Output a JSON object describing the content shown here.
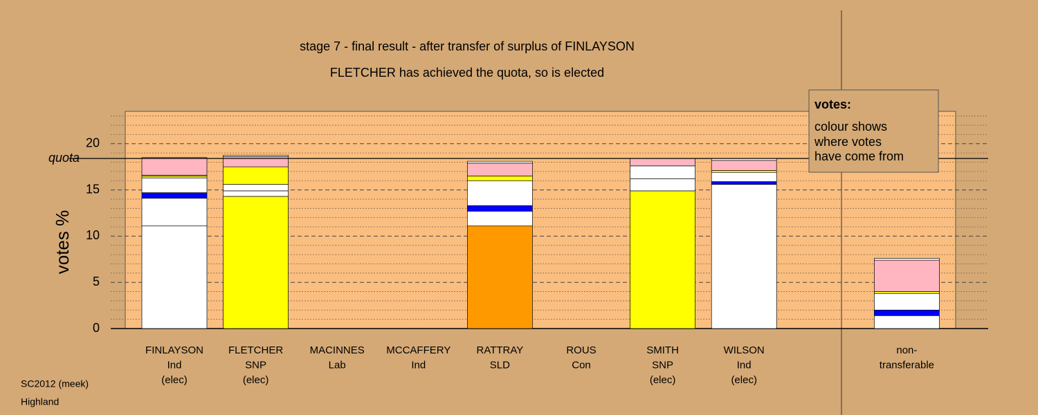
{
  "chart_data": {
    "type": "stacked-bar",
    "title": "stage 7 - final result - after transfer of surplus of FINLAYSON",
    "subtitle": "FLETCHER has achieved the quota, so is elected",
    "ylabel": "votes %",
    "ylim": [
      0,
      23.5
    ],
    "yticks": [
      0,
      5,
      10,
      15,
      20
    ],
    "yminor": [
      1,
      2,
      3,
      4,
      6,
      7,
      8,
      9,
      11,
      12,
      13,
      14,
      16,
      17,
      18,
      19,
      21,
      22,
      23
    ],
    "quota": {
      "label": "quota",
      "value": 18.4
    },
    "categories": [
      [
        "FINLAYSON",
        "Ind",
        "(elec)"
      ],
      [
        "FLETCHER",
        "SNP",
        "(elec)"
      ],
      [
        "MACINNES",
        "Lab"
      ],
      [
        "MCCAFFERY",
        "Ind"
      ],
      [
        "RATTRAY",
        "SLD"
      ],
      [
        "ROUS",
        "Con"
      ],
      [
        "SMITH",
        "SNP",
        "(elec)"
      ],
      [
        "WILSON",
        "Ind",
        "(elec)"
      ],
      [
        "non-",
        "transferable"
      ]
    ],
    "series": [
      {
        "colors": [
          "#ffffff",
          "#ffff00",
          "#0000ff",
          "#ffffff",
          "#ff9900",
          "#ffb6c1",
          "#ffff00",
          "#ffffff",
          "#ffffff"
        ],
        "values": [
          11.1,
          14.3,
          0,
          0,
          11.1,
          0,
          14.9,
          15.6,
          0
        ]
      },
      {
        "color": "#ffffff",
        "values": [
          3.0,
          0.6,
          0,
          0,
          1.6,
          0,
          1.3,
          0,
          1.4
        ]
      },
      {
        "color": "#0000ff",
        "values": [
          0.6,
          0,
          0,
          0,
          0.6,
          0,
          0,
          0.3,
          0.6
        ]
      },
      {
        "color": "#ffffff",
        "values": [
          1.6,
          0.7,
          0,
          0,
          2.7,
          0,
          1.4,
          1.0,
          1.8
        ]
      },
      {
        "color": "#ffff00",
        "values": [
          0.2,
          1.9,
          0,
          0,
          0.5,
          0,
          0,
          0.2,
          0.2
        ]
      },
      {
        "color": "#ffffff",
        "values": [
          0.1,
          0,
          0,
          0,
          0,
          0,
          0,
          0,
          0
        ]
      },
      {
        "color": "#ffb6c1",
        "values": [
          1.9,
          1.1,
          0,
          0,
          1.4,
          0,
          0.8,
          1.1,
          3.4
        ]
      },
      {
        "color": "#ffffff",
        "values": [
          0,
          0.15,
          0,
          0,
          0.2,
          0,
          0,
          0.2,
          0.2
        ]
      }
    ],
    "legend": {
      "title": "votes:",
      "lines": [
        "colour shows",
        "where votes",
        "have come from"
      ]
    },
    "footer": [
      "SC2012 (meek)",
      "Highland"
    ]
  }
}
